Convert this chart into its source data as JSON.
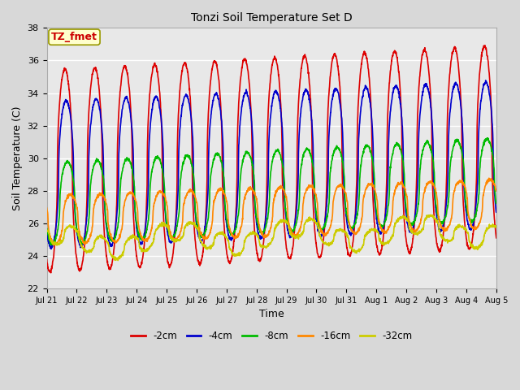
{
  "title": "Tonzi Soil Temperature Set D",
  "xlabel": "Time",
  "ylabel": "Soil Temperature (C)",
  "ylim": [
    22,
    38
  ],
  "annotation": "TZ_fmet",
  "annotation_color": "#cc0000",
  "annotation_bg": "#ffffcc",
  "series_labels": [
    "-2cm",
    "-4cm",
    "-8cm",
    "-16cm",
    "-32cm"
  ],
  "series_colors": [
    "#dd0000",
    "#0000cc",
    "#00bb00",
    "#ff8800",
    "#cccc00"
  ],
  "n_days": 15,
  "background_color": "#e8e8e8",
  "grid_color": "#ffffff",
  "tick_labels": [
    "Jul 21",
    "Jul 22",
    "Jul 23",
    "Jul 24",
    "Jul 25",
    "Jul 26",
    "Jul 27",
    "Jul 28",
    "Jul 29",
    "Jul 30",
    "Jul 31",
    "Aug 1",
    "Aug 2",
    "Aug 3",
    "Aug 4",
    "Aug 5"
  ],
  "figsize": [
    6.4,
    4.8
  ],
  "dpi": 100
}
